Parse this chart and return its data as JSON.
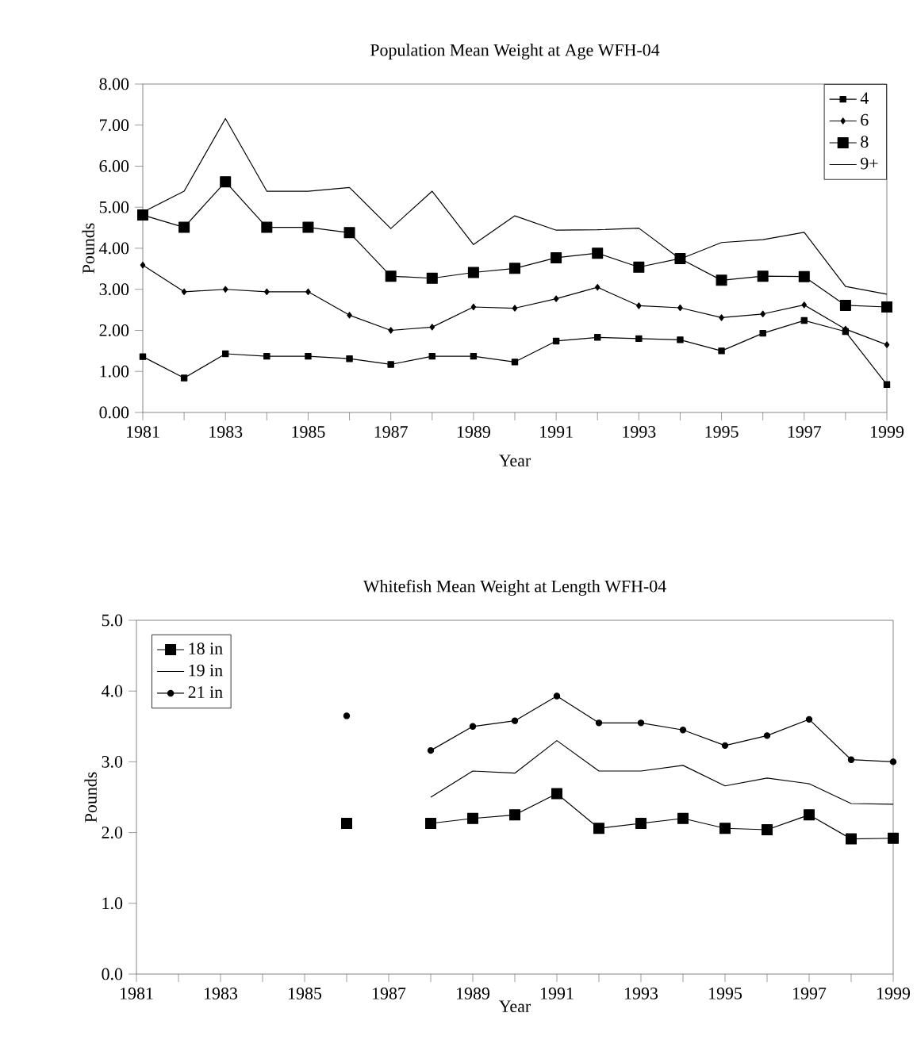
{
  "chart_data": [
    {
      "type": "line",
      "title": "Population Mean Weight at Age WFH-04",
      "xlabel": "Year",
      "ylabel": "Pounds",
      "x": [
        1981,
        1982,
        1983,
        1984,
        1985,
        1986,
        1987,
        1988,
        1989,
        1990,
        1991,
        1992,
        1993,
        1994,
        1995,
        1996,
        1997,
        1998,
        1999
      ],
      "series": [
        {
          "name": "4",
          "color": "#000000",
          "marker": "square",
          "values": [
            1.36,
            0.84,
            1.43,
            1.37,
            1.37,
            1.31,
            1.17,
            1.37,
            1.37,
            1.23,
            1.74,
            1.83,
            1.8,
            1.77,
            1.5,
            1.93,
            2.24,
            1.97,
            0.68
          ]
        },
        {
          "name": "6",
          "color": "#000000",
          "marker": "diamond",
          "values": [
            3.59,
            2.94,
            3.0,
            2.94,
            2.94,
            2.37,
            2.0,
            2.08,
            2.57,
            2.54,
            2.77,
            3.05,
            2.6,
            2.55,
            2.31,
            2.4,
            2.62,
            2.03,
            1.65
          ]
        },
        {
          "name": "8",
          "color": "#000000",
          "marker": "square",
          "values": [
            4.81,
            4.51,
            5.62,
            4.51,
            4.51,
            4.38,
            3.32,
            3.27,
            3.41,
            3.51,
            3.77,
            3.88,
            3.54,
            3.75,
            3.22,
            3.32,
            3.31,
            2.61,
            2.57
          ]
        },
        {
          "name": "9+",
          "color": "#000000",
          "marker": "none",
          "values": [
            4.88,
            5.39,
            7.16,
            5.39,
            5.39,
            5.48,
            4.48,
            5.39,
            4.09,
            4.79,
            4.44,
            4.45,
            4.49,
            3.74,
            4.14,
            4.21,
            4.39,
            3.07,
            2.88
          ]
        }
      ],
      "xlim": [
        1981,
        1999
      ],
      "xticks": [
        {
          "value": 1981,
          "label": "1981"
        },
        {
          "value": 1982,
          "label": null
        },
        {
          "value": 1983,
          "label": "1983"
        },
        {
          "value": 1984,
          "label": null
        },
        {
          "value": 1985,
          "label": "1985"
        },
        {
          "value": 1986,
          "label": null
        },
        {
          "value": 1987,
          "label": "1987"
        },
        {
          "value": 1988,
          "label": null
        },
        {
          "value": 1989,
          "label": "1989"
        },
        {
          "value": 1990,
          "label": null
        },
        {
          "value": 1991,
          "label": "1991"
        },
        {
          "value": 1992,
          "label": null
        },
        {
          "value": 1993,
          "label": "1993"
        },
        {
          "value": 1994,
          "label": null
        },
        {
          "value": 1995,
          "label": "1995"
        },
        {
          "value": 1996,
          "label": null
        },
        {
          "value": 1997,
          "label": "1997"
        },
        {
          "value": 1998,
          "label": null
        },
        {
          "value": 1999,
          "label": "1999"
        }
      ],
      "ylim": [
        0,
        8
      ],
      "yticks": [
        {
          "value": 0,
          "label": "0.00"
        },
        {
          "value": 1,
          "label": "1.00"
        },
        {
          "value": 2,
          "label": "2.00"
        },
        {
          "value": 3,
          "label": "3.00"
        },
        {
          "value": 4,
          "label": "4.00"
        },
        {
          "value": 5,
          "label": "5.00"
        },
        {
          "value": 6,
          "label": "6.00"
        },
        {
          "value": 7,
          "label": "7.00"
        },
        {
          "value": 8,
          "label": "8.00"
        }
      ],
      "grid": false,
      "legend": "top right"
    },
    {
      "type": "line",
      "title": "Whitefish Mean Weight at Length WFH-04",
      "xlabel": "Year",
      "ylabel": "Pounds",
      "x": [
        1986,
        1987,
        1988,
        1989,
        1990,
        1991,
        1992,
        1993,
        1994,
        1995,
        1996,
        1997,
        1998,
        1999
      ],
      "series": [
        {
          "name": "18 in",
          "color": "#000000",
          "marker": "square",
          "values": [
            2.13,
            null,
            2.13,
            2.2,
            2.25,
            2.55,
            2.06,
            2.13,
            2.2,
            2.06,
            2.04,
            2.25,
            1.91,
            1.92
          ]
        },
        {
          "name": "19 in",
          "color": "#000000",
          "marker": "none",
          "values": [
            null,
            null,
            2.5,
            2.87,
            2.84,
            3.3,
            2.87,
            2.87,
            2.95,
            2.66,
            2.77,
            2.69,
            2.41,
            2.4
          ]
        },
        {
          "name": "21 in",
          "color": "#000000",
          "marker": "circle",
          "values": [
            3.65,
            null,
            3.16,
            3.5,
            3.58,
            3.93,
            3.55,
            3.55,
            3.45,
            3.23,
            3.37,
            3.6,
            3.03,
            3.0
          ]
        }
      ],
      "xlim": [
        1981,
        1999
      ],
      "xticks": [
        {
          "value": 1981,
          "label": "1981"
        },
        {
          "value": 1982,
          "label": null
        },
        {
          "value": 1983,
          "label": "1983"
        },
        {
          "value": 1984,
          "label": null
        },
        {
          "value": 1985,
          "label": "1985"
        },
        {
          "value": 1986,
          "label": null
        },
        {
          "value": 1987,
          "label": "1987"
        },
        {
          "value": 1988,
          "label": null
        },
        {
          "value": 1989,
          "label": "1989"
        },
        {
          "value": 1990,
          "label": null
        },
        {
          "value": 1991,
          "label": "1991"
        },
        {
          "value": 1992,
          "label": null
        },
        {
          "value": 1993,
          "label": "1993"
        },
        {
          "value": 1994,
          "label": null
        },
        {
          "value": 1995,
          "label": "1995"
        },
        {
          "value": 1996,
          "label": null
        },
        {
          "value": 1997,
          "label": "1997"
        },
        {
          "value": 1998,
          "label": null
        },
        {
          "value": 1999,
          "label": "1999"
        }
      ],
      "ylim": [
        0,
        5
      ],
      "yticks": [
        {
          "value": 0,
          "label": "0.0"
        },
        {
          "value": 1,
          "label": "1.0"
        },
        {
          "value": 2,
          "label": "2.0"
        },
        {
          "value": 3,
          "label": "3.0"
        },
        {
          "value": 4,
          "label": "4.0"
        },
        {
          "value": 5,
          "label": "5.0"
        }
      ],
      "grid": false,
      "legend": "top left"
    }
  ]
}
